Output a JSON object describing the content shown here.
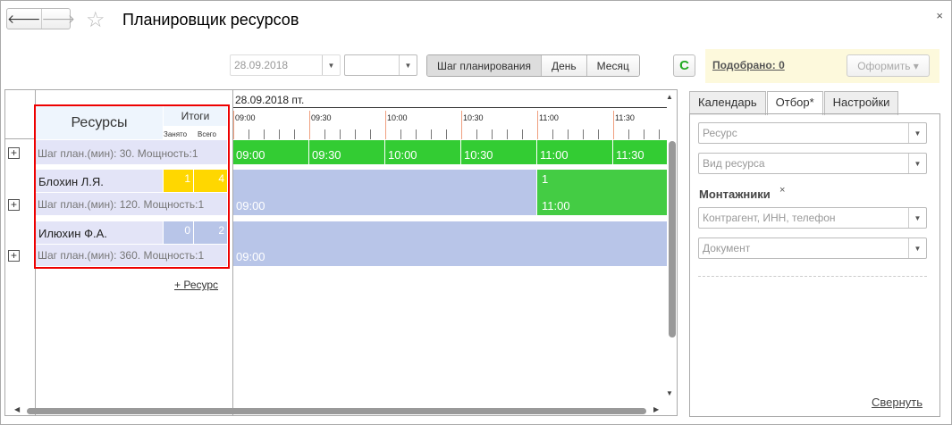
{
  "window": {
    "title": "Планировщик ресурсов",
    "back": "🡐",
    "forward": "🡒",
    "star": "☆",
    "close": "×"
  },
  "toolbar": {
    "date": "28.09.2018",
    "period": "",
    "modes": [
      "Шаг планирования",
      "День",
      "Месяц"
    ],
    "refresh": "C",
    "picked": "Подобрано: 0",
    "oform": "Оформить ▾"
  },
  "table": {
    "header": {
      "resources": "Ресурсы",
      "totals": "Итоги",
      "busy": "Занято",
      "all": "Всего"
    },
    "rows": [
      {
        "name": "",
        "info": "Шаг план.(мин): 30. Мощность:1",
        "busy": "",
        "total": ""
      },
      {
        "name": "Блохин Л.Я.",
        "info": "Шаг план.(мин): 120. Мощность:1",
        "busy": "1",
        "total": "4",
        "color": "#ffd700"
      },
      {
        "name": "Илюхин Ф.А.",
        "info": "Шаг план.(мин): 360. Мощность:1",
        "busy": "0",
        "total": "2",
        "color": "#b8c5e8"
      }
    ],
    "add_resource": "+ Ресурс"
  },
  "timeline": {
    "date": "28.09.2018 пт.",
    "times": [
      "09:00",
      "09:30",
      "10:00",
      "10:30",
      "11:00",
      "11:30"
    ],
    "row1": [
      "09:00",
      "09:30",
      "10:00",
      "10:30",
      "11:00",
      "11:30"
    ],
    "row2": {
      "free": "09:00",
      "busy_count": "1",
      "busy_time": "11:00"
    },
    "row3": {
      "free": "09:00"
    },
    "colors": {
      "green": "#33cc33",
      "busy_green": "#44cc44",
      "free": "#b8c5e8"
    }
  },
  "side": {
    "tabs": [
      "Календарь",
      "Отбор*",
      "Настройки"
    ],
    "resource_ph": "Ресурс",
    "kind_ph": "Вид ресурса",
    "group": "Монтажники",
    "group_remove": "×",
    "contractor_ph": "Контрагент, ИНН, телефон",
    "document_ph": "Документ",
    "collapse": "Свернуть"
  }
}
